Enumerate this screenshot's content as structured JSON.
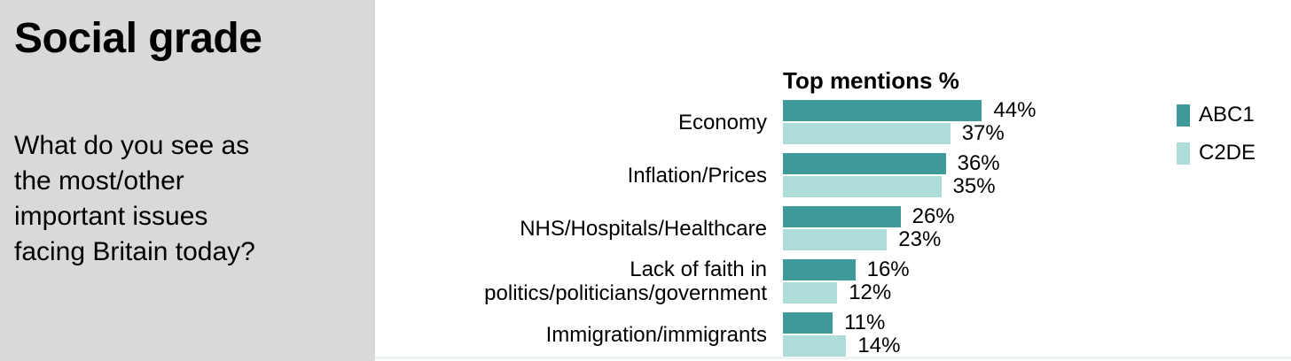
{
  "panel": {
    "title": "Social grade",
    "question_lines": [
      "What do you see as",
      "the most/other",
      "important issues",
      "facing Britain today?"
    ],
    "background_color": "#d9d9d9"
  },
  "chart_data": {
    "type": "bar",
    "orientation": "horizontal",
    "title": "Top mentions %",
    "categories": [
      "Economy",
      "Inflation/Prices",
      "NHS/Hospitals/Healthcare",
      "Lack of faith in politics/politicians/government",
      "Immigration/immigrants"
    ],
    "series": [
      {
        "name": "ABC1",
        "color": "#3e9a99",
        "values": [
          44,
          36,
          26,
          16,
          11
        ]
      },
      {
        "name": "C2DE",
        "color": "#aedcd9",
        "values": [
          37,
          35,
          23,
          12,
          14
        ]
      }
    ],
    "value_suffix": "%",
    "xlim": [
      0,
      50
    ],
    "grid": false,
    "legend_position": "right",
    "baseline_color": "#eef4f4"
  }
}
